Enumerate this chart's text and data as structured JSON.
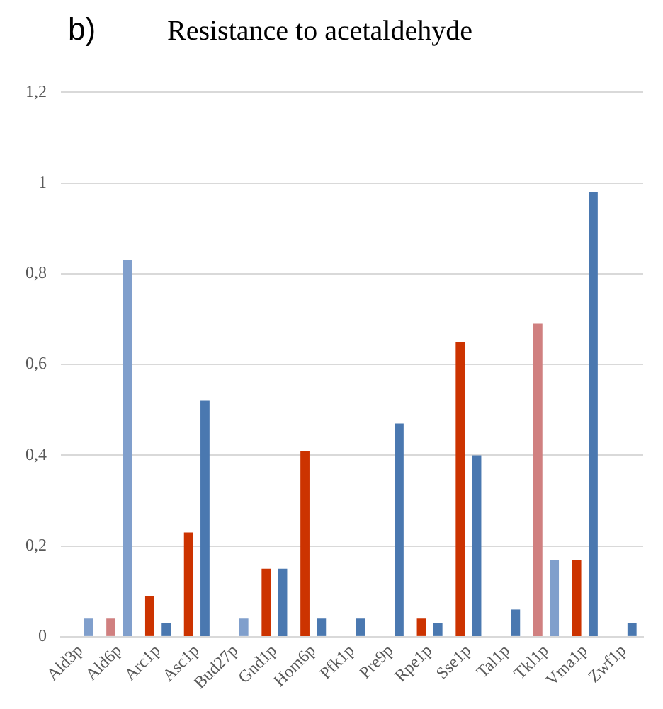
{
  "chart_data": {
    "type": "bar",
    "title": "Resistance to acetaldehyde",
    "annotations": [
      "b)"
    ],
    "categories": [
      "Ald3p",
      "Ald6p",
      "Arc1p",
      "Asc1p",
      "Bud27p",
      "Gnd1p",
      "Hom6p",
      "Pfk1p",
      "Pre9p",
      "Rpe1p",
      "Sse1p",
      "Tal1p",
      "Tkl1p",
      "Vma1p",
      "Zwf1p"
    ],
    "series": [
      {
        "colors": [
          "#cc3300",
          "#d08080",
          "#cc3300",
          "#cc3300",
          "#cc3300",
          "#cc3300",
          "#cc3300",
          "#cc3300",
          "#cc3300",
          "#cc3300",
          "#cc3300",
          "#cc3300",
          "#d08080",
          "#cc3300",
          "#cc3300"
        ],
        "values": [
          null,
          0.04,
          0.09,
          0.23,
          null,
          0.15,
          0.41,
          null,
          null,
          0.04,
          0.65,
          null,
          0.69,
          0.17,
          null
        ]
      },
      {
        "colors": [
          "#809fcc",
          "#809fcc",
          "#4a78b0",
          "#4a78b0",
          "#809fcc",
          "#4a78b0",
          "#4a78b0",
          "#4a78b0",
          "#4a78b0",
          "#4a78b0",
          "#4a78b0",
          "#4a78b0",
          "#809fcc",
          "#4a78b0",
          "#4a78b0"
        ],
        "values": [
          0.04,
          0.83,
          0.03,
          0.52,
          0.04,
          0.15,
          0.04,
          0.04,
          0.47,
          0.03,
          0.4,
          0.06,
          0.17,
          0.98,
          0.03
        ]
      }
    ],
    "ylim": [
      0,
      1.2
    ],
    "yticks": [
      0,
      {
        "value": 0.2,
        "label": "0,2"
      },
      {
        "value": 0.4,
        "label": "0,4"
      },
      {
        "value": 0.6,
        "label": "0,6"
      },
      {
        "value": 0.8,
        "label": "0,8"
      },
      1,
      {
        "value": 1.2,
        "label": "1,2"
      }
    ],
    "grid": "y",
    "legend": false
  }
}
